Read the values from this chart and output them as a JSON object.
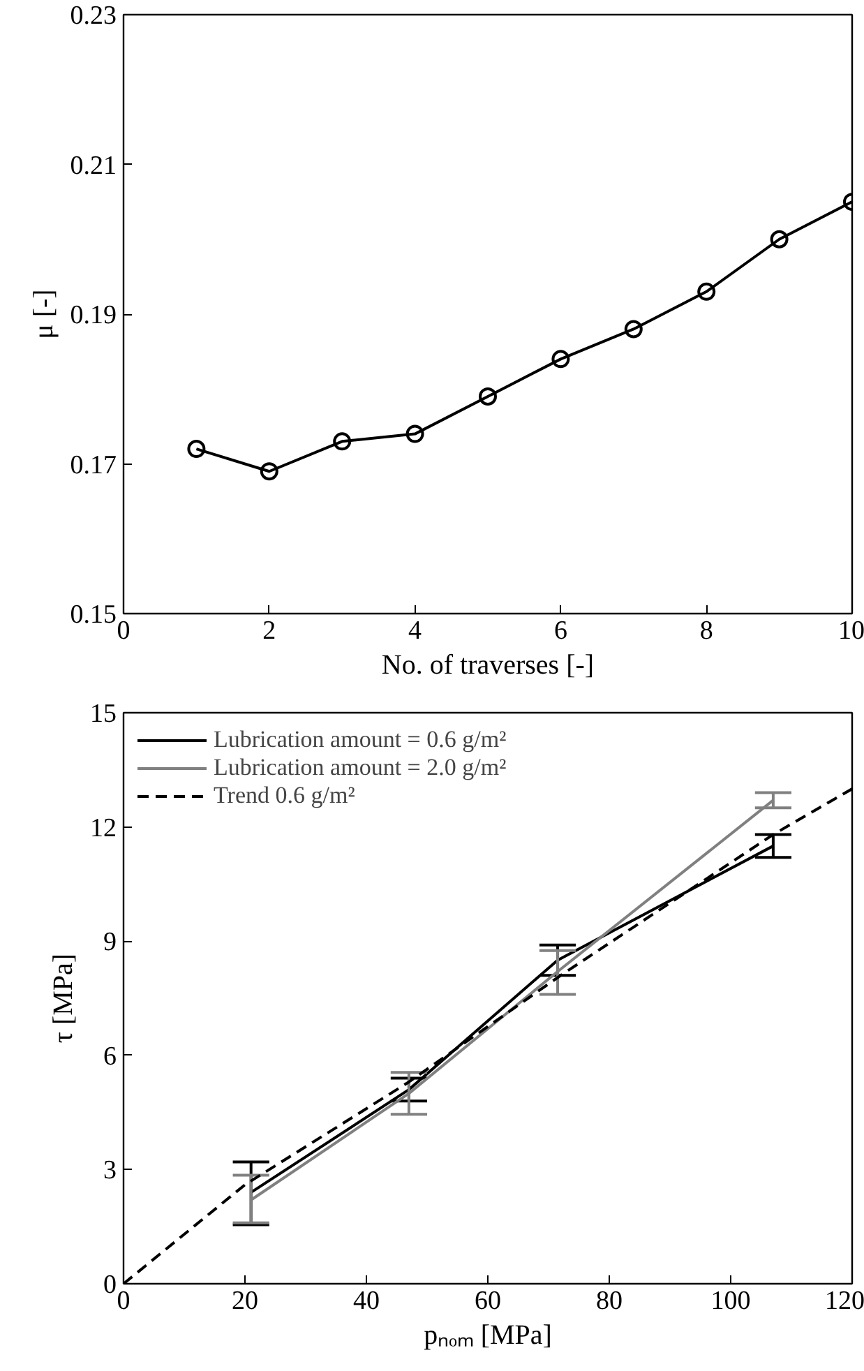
{
  "chart_data": [
    {
      "type": "line",
      "xlabel": "No. of traverses [-]",
      "ylabel": "μ [-]",
      "x": [
        1,
        2,
        3,
        4,
        5,
        6,
        7,
        8,
        9,
        10
      ],
      "series": [
        {
          "color": "#000000",
          "values": [
            0.172,
            0.169,
            0.173,
            0.174,
            0.179,
            0.184,
            0.188,
            0.193,
            0.2,
            0.205
          ]
        }
      ],
      "xlim": [
        0,
        10
      ],
      "xticks": [
        0,
        2,
        4,
        6,
        8,
        10
      ],
      "ylim": [
        0.15,
        0.23
      ],
      "yticks": [
        0.15,
        0.17,
        0.19,
        0.21,
        0.23
      ],
      "marker": "circle",
      "grid": false,
      "legend": false
    },
    {
      "type": "line",
      "xlabel": "pₙₒₘ [MPa]",
      "ylabel": "τ [MPa]",
      "x": [
        21,
        47,
        71.5,
        107
      ],
      "series": [
        {
          "name": "Lubrication amount = 0.6 g/m²",
          "color": "#000000",
          "values": [
            2.4,
            5.1,
            8.5,
            11.5
          ],
          "errors": [
            [
              1.55,
              3.2
            ],
            [
              4.8,
              5.4
            ],
            [
              8.1,
              8.9
            ],
            [
              11.2,
              11.8
            ]
          ]
        },
        {
          "name": "Lubrication amount = 2.0 g/m²",
          "color": "#808080",
          "values": [
            2.2,
            5.0,
            8.2,
            12.7
          ],
          "errors": [
            [
              1.6,
              2.85
            ],
            [
              4.45,
              5.55
            ],
            [
              7.6,
              8.75
            ],
            [
              12.5,
              12.9
            ]
          ]
        },
        {
          "name": "Trend 0.6 g/m²",
          "color": "#000000",
          "line_style": "dashed",
          "x": [
            0,
            20,
            47,
            72,
            107,
            120
          ],
          "values": [
            0,
            2.6,
            5.3,
            8.1,
            11.8,
            13.0
          ]
        }
      ],
      "xlim": [
        0,
        120
      ],
      "xticks": [
        0,
        20,
        40,
        60,
        80,
        100,
        120
      ],
      "ylim": [
        0,
        15
      ],
      "yticks": [
        0,
        3,
        6,
        9,
        12,
        15
      ],
      "grid": false,
      "legend": "top left"
    }
  ]
}
